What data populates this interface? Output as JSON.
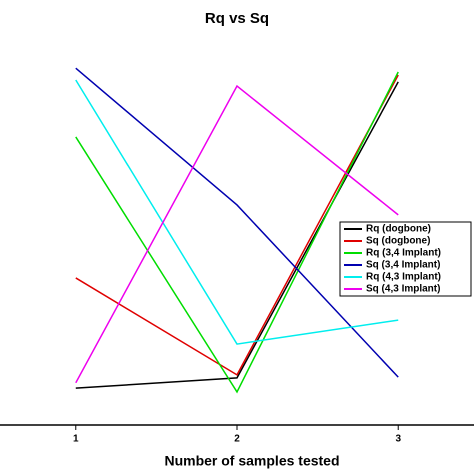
{
  "chart_data": {
    "type": "line",
    "title": "Rq vs Sq",
    "x_label": "Number of samples tested",
    "x": [
      1,
      2,
      3
    ],
    "xlim": [
      0.53,
      3.47
    ],
    "xticks": [
      1,
      2,
      3
    ],
    "ylim": [
      0,
      100
    ],
    "legend": "right",
    "series": [
      {
        "name": "Rq (dogbone)",
        "color": "#000000",
        "values": [
          9.7,
          12.4,
          90.3
        ]
      },
      {
        "name": "Sq (dogbone)",
        "color": "#e00000",
        "values": [
          38.7,
          13.2,
          92.1
        ]
      },
      {
        "name": "Rq (3,4 Implant)",
        "color": "#00dd00",
        "values": [
          75.8,
          8.7,
          92.9
        ]
      },
      {
        "name": "Sq (3,4 Implant)",
        "color": "#0000b0",
        "values": [
          93.9,
          57.9,
          12.6
        ]
      },
      {
        "name": "Rq (4,3 Implant)",
        "color": "#00eeee",
        "values": [
          90.8,
          21.3,
          27.6
        ]
      },
      {
        "name": "Sq (4,3 Implant)",
        "color": "#ee00ee",
        "values": [
          11.1,
          89.2,
          55.3
        ]
      }
    ]
  }
}
